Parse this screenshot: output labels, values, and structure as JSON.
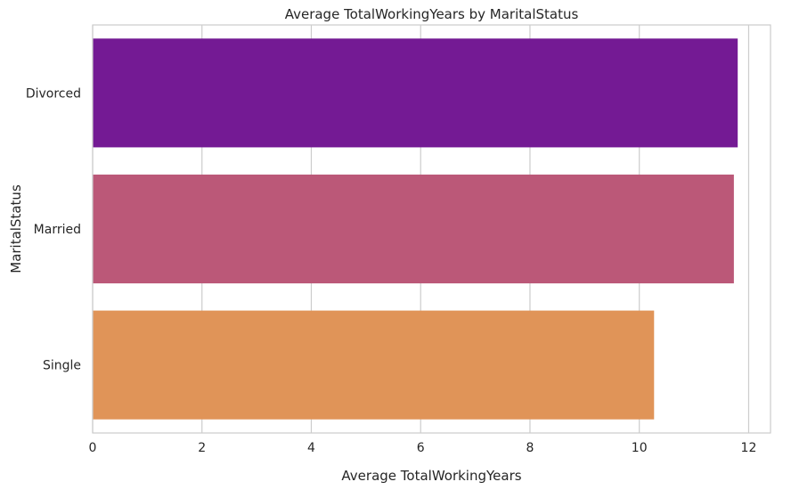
{
  "chart_data": {
    "type": "bar",
    "orientation": "horizontal",
    "title": "Average TotalWorkingYears by MaritalStatus",
    "xlabel": "Average TotalWorkingYears",
    "ylabel": "MaritalStatus",
    "categories": [
      "Divorced",
      "Married",
      "Single"
    ],
    "values": [
      11.8,
      11.73,
      10.27
    ],
    "colors": [
      "#741a94",
      "#bb5878",
      "#e09458"
    ],
    "xlim": [
      0,
      12.4
    ],
    "xticks": [
      0,
      2,
      4,
      6,
      8,
      10,
      12
    ],
    "xtick_labels": [
      "0",
      "2",
      "4",
      "6",
      "8",
      "10",
      "12"
    ],
    "grid": true,
    "grid_axis": "x",
    "legend": false
  }
}
